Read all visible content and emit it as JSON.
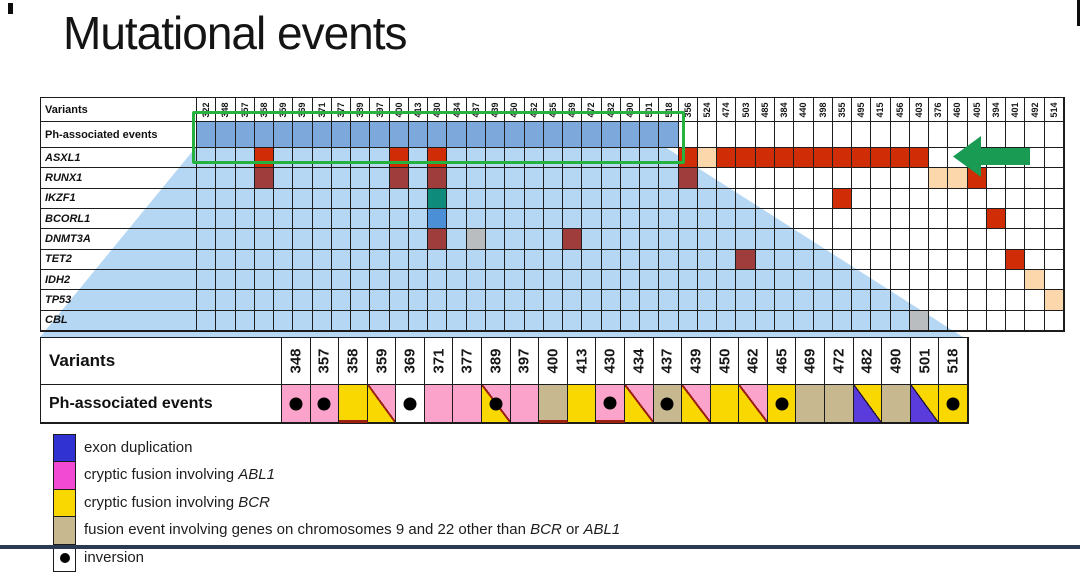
{
  "title": "Mutational events",
  "colors": {
    "red": "#d02c05",
    "maroon": "#9f3c3c",
    "teal": "#0e8b7a",
    "blue_cell": "#4b90d6",
    "peach": "#fbd7ab",
    "gray": "#b9bdc0",
    "overlay": "#b5d7f3",
    "band": "#7da8db",
    "green_box": "#25b23e",
    "arrow_green": "#1a9b53",
    "pink": "#fba3cb",
    "magenta": "#f24ad2",
    "yellow": "#f8d800",
    "tan": "#c8b88f",
    "purple": "#5a3bdc",
    "legend_blue": "#3032d1",
    "diag_red": "#9b2012",
    "diag_dark": "#20123a",
    "navy_bar": "#2b3a52",
    "white": "#ffffff"
  },
  "chart_data": {
    "type": "heatmap",
    "title": "Mutational events",
    "top_matrix": {
      "row_label_header": "Variants",
      "ph_row_label": "Ph-associated events",
      "columns": [
        "322",
        "348",
        "357",
        "358",
        "359",
        "369",
        "371",
        "377",
        "389",
        "397",
        "400",
        "413",
        "430",
        "434",
        "437",
        "439",
        "450",
        "462",
        "465",
        "469",
        "472",
        "482",
        "490",
        "501",
        "518",
        "356",
        "524",
        "474",
        "503",
        "485",
        "384",
        "440",
        "398",
        "355",
        "495",
        "415",
        "456",
        "403",
        "376",
        "460",
        "405",
        "394",
        "401",
        "492",
        "514"
      ],
      "ph_highlighted_column_count": 25,
      "genes": [
        "ASXL1",
        "RUNX1",
        "IKZF1",
        "BCORL1",
        "DNMT3A",
        "TET2",
        "IDH2",
        "TP53",
        "CBL"
      ],
      "cells": [
        {
          "gene": "ASXL1",
          "col": "358",
          "color": "red"
        },
        {
          "gene": "ASXL1",
          "col": "400",
          "color": "red"
        },
        {
          "gene": "ASXL1",
          "col": "430",
          "color": "red"
        },
        {
          "gene": "ASXL1",
          "col": "356",
          "color": "red"
        },
        {
          "gene": "ASXL1",
          "col": "474",
          "color": "red"
        },
        {
          "gene": "ASXL1",
          "col": "503",
          "color": "red"
        },
        {
          "gene": "ASXL1",
          "col": "485",
          "color": "red"
        },
        {
          "gene": "ASXL1",
          "col": "384",
          "color": "red"
        },
        {
          "gene": "ASXL1",
          "col": "440",
          "color": "red"
        },
        {
          "gene": "ASXL1",
          "col": "398",
          "color": "red"
        },
        {
          "gene": "ASXL1",
          "col": "355",
          "color": "red"
        },
        {
          "gene": "ASXL1",
          "col": "495",
          "color": "red"
        },
        {
          "gene": "ASXL1",
          "col": "415",
          "color": "red"
        },
        {
          "gene": "ASXL1",
          "col": "456",
          "color": "red"
        },
        {
          "gene": "ASXL1",
          "col": "403",
          "color": "red"
        },
        {
          "gene": "ASXL1",
          "col": "524",
          "color": "peach"
        },
        {
          "gene": "RUNX1",
          "col": "358",
          "color": "maroon"
        },
        {
          "gene": "RUNX1",
          "col": "400",
          "color": "maroon"
        },
        {
          "gene": "RUNX1",
          "col": "430",
          "color": "maroon"
        },
        {
          "gene": "RUNX1",
          "col": "356",
          "color": "maroon"
        },
        {
          "gene": "RUNX1",
          "col": "376",
          "color": "peach"
        },
        {
          "gene": "RUNX1",
          "col": "460",
          "color": "peach"
        },
        {
          "gene": "RUNX1",
          "col": "405",
          "color": "red"
        },
        {
          "gene": "IKZF1",
          "col": "430",
          "color": "teal"
        },
        {
          "gene": "IKZF1",
          "col": "355",
          "color": "red"
        },
        {
          "gene": "BCORL1",
          "col": "430",
          "color": "blue_cell"
        },
        {
          "gene": "BCORL1",
          "col": "394",
          "color": "red"
        },
        {
          "gene": "DNMT3A",
          "col": "430",
          "color": "maroon"
        },
        {
          "gene": "DNMT3A",
          "col": "437",
          "color": "gray"
        },
        {
          "gene": "DNMT3A",
          "col": "469",
          "color": "maroon"
        },
        {
          "gene": "TET2",
          "col": "503",
          "color": "maroon"
        },
        {
          "gene": "TET2",
          "col": "401",
          "color": "red"
        },
        {
          "gene": "IDH2",
          "col": "492",
          "color": "peach"
        },
        {
          "gene": "TP53",
          "col": "514",
          "color": "peach"
        },
        {
          "gene": "CBL",
          "col": "403",
          "color": "gray"
        }
      ]
    },
    "bottom_track": {
      "variants_label": "Variants",
      "events_label": "Ph-associated events",
      "columns": [
        "348",
        "357",
        "358",
        "359",
        "369",
        "371",
        "377",
        "389",
        "397",
        "400",
        "413",
        "430",
        "434",
        "437",
        "439",
        "450",
        "462",
        "465",
        "469",
        "472",
        "482",
        "490",
        "501",
        "518"
      ],
      "events": {
        "348": {
          "bg": "pink",
          "dot": true
        },
        "357": {
          "bg": "pink",
          "dot": true
        },
        "358": {
          "bg": "yellow",
          "red_bottom": true
        },
        "359": {
          "split": "pink_yellow"
        },
        "369": {
          "bg": "white",
          "dot": true
        },
        "371": {
          "bg": "pink"
        },
        "377": {
          "bg": "pink"
        },
        "389": {
          "split": "pink_yellow",
          "dot": true
        },
        "397": {
          "bg": "pink"
        },
        "400": {
          "bg": "tan",
          "red_bottom": true
        },
        "413": {
          "bg": "yellow"
        },
        "430": {
          "bg": "pink",
          "dot": true,
          "red_bottom": true
        },
        "434": {
          "split": "pink_yellow"
        },
        "437": {
          "bg": "tan",
          "dot": true
        },
        "439": {
          "split": "pink_yellow"
        },
        "450": {
          "bg": "yellow"
        },
        "462": {
          "split": "pink_yellow"
        },
        "465": {
          "bg": "yellow",
          "dot": true
        },
        "469": {
          "bg": "tan"
        },
        "472": {
          "bg": "tan"
        },
        "482": {
          "split": "yellow_purple"
        },
        "490": {
          "bg": "tan"
        },
        "501": {
          "split": "yellow_purple"
        },
        "518": {
          "bg": "yellow",
          "dot": true
        }
      }
    },
    "legend": [
      {
        "swatch": "legend_blue",
        "parts": [
          {
            "text": "exon duplication"
          }
        ]
      },
      {
        "swatch": "magenta",
        "parts": [
          {
            "text": "cryptic fusion involving "
          },
          {
            "text": "ABL1",
            "italic": true
          }
        ]
      },
      {
        "swatch": "yellow",
        "parts": [
          {
            "text": "cryptic fusion involving "
          },
          {
            "text": "BCR",
            "italic": true
          }
        ]
      },
      {
        "swatch": "tan",
        "parts": [
          {
            "text": "fusion event involving genes  on chromosomes  9 and 22 other than "
          },
          {
            "text": "BCR",
            "italic": true
          },
          {
            "text": " or "
          },
          {
            "text": "ABL1",
            "italic": true
          }
        ]
      },
      {
        "swatch": "white",
        "dot": true,
        "parts": [
          {
            "text": "inversion"
          }
        ]
      }
    ]
  }
}
